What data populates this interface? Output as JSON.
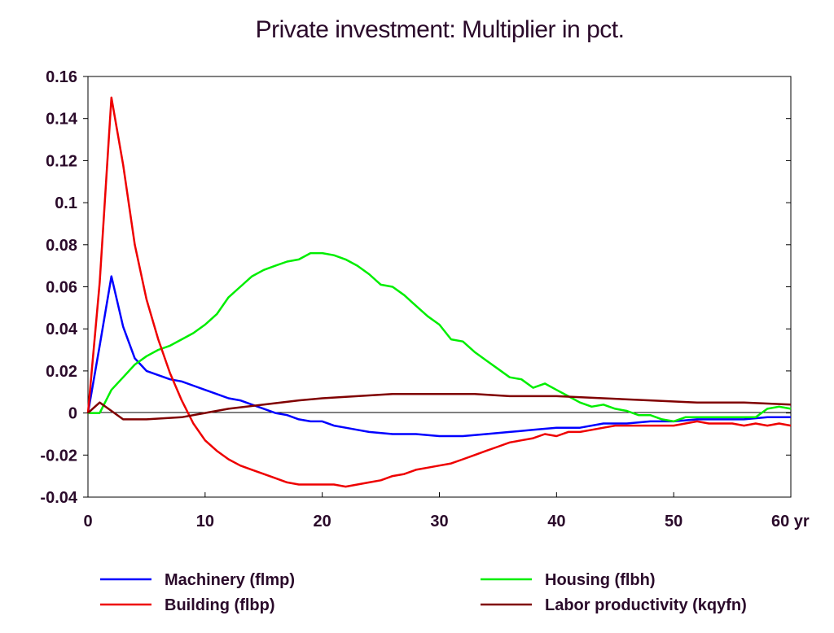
{
  "chart_data": {
    "type": "line",
    "title": "Private investment: Multiplier in pct.",
    "xlabel": "",
    "ylabel": "",
    "x_unit_label": "yr",
    "xlim": [
      0,
      60
    ],
    "ylim": [
      -0.04,
      0.16
    ],
    "x_ticks": [
      0,
      10,
      20,
      30,
      40,
      50,
      60
    ],
    "x_tick_labels": [
      "0",
      "10",
      "20",
      "30",
      "40",
      "50",
      "60 yr"
    ],
    "y_ticks": [
      -0.04,
      -0.02,
      0,
      0.02,
      0.04,
      0.06,
      0.08,
      0.1,
      0.12,
      0.14,
      0.16
    ],
    "y_tick_labels": [
      "-0.04",
      "-0.02",
      "0",
      "0.02",
      "0.04",
      "0.06",
      "0.08",
      "0.1",
      "0.12",
      "0.14",
      "0.16"
    ],
    "grid": false,
    "zero_line": true,
    "legend_position": "bottom",
    "series": [
      {
        "name": "Machinery (flmp)",
        "color": "#0000ff",
        "points": [
          [
            0,
            0
          ],
          [
            1,
            0.032
          ],
          [
            2,
            0.065
          ],
          [
            3,
            0.041
          ],
          [
            4,
            0.026
          ],
          [
            5,
            0.02
          ],
          [
            6,
            0.018
          ],
          [
            7,
            0.016
          ],
          [
            8,
            0.015
          ],
          [
            9,
            0.013
          ],
          [
            10,
            0.011
          ],
          [
            11,
            0.009
          ],
          [
            12,
            0.007
          ],
          [
            13,
            0.006
          ],
          [
            14,
            0.004
          ],
          [
            15,
            0.002
          ],
          [
            16,
            0
          ],
          [
            17,
            -0.001
          ],
          [
            18,
            -0.003
          ],
          [
            19,
            -0.004
          ],
          [
            20,
            -0.004
          ],
          [
            21,
            -0.006
          ],
          [
            22,
            -0.007
          ],
          [
            23,
            -0.008
          ],
          [
            24,
            -0.009
          ],
          [
            26,
            -0.01
          ],
          [
            28,
            -0.01
          ],
          [
            30,
            -0.011
          ],
          [
            32,
            -0.011
          ],
          [
            34,
            -0.01
          ],
          [
            36,
            -0.009
          ],
          [
            38,
            -0.008
          ],
          [
            40,
            -0.007
          ],
          [
            42,
            -0.007
          ],
          [
            44,
            -0.005
          ],
          [
            46,
            -0.005
          ],
          [
            48,
            -0.004
          ],
          [
            50,
            -0.004
          ],
          [
            52,
            -0.003
          ],
          [
            54,
            -0.003
          ],
          [
            56,
            -0.003
          ],
          [
            58,
            -0.002
          ],
          [
            60,
            -0.002
          ]
        ]
      },
      {
        "name": "Housing (flbh)",
        "color": "#00ee00",
        "points": [
          [
            0,
            0
          ],
          [
            1,
            0
          ],
          [
            2,
            0.011
          ],
          [
            3,
            0.017
          ],
          [
            4,
            0.023
          ],
          [
            5,
            0.027
          ],
          [
            6,
            0.03
          ],
          [
            7,
            0.032
          ],
          [
            8,
            0.035
          ],
          [
            9,
            0.038
          ],
          [
            10,
            0.042
          ],
          [
            11,
            0.047
          ],
          [
            12,
            0.055
          ],
          [
            13,
            0.06
          ],
          [
            14,
            0.065
          ],
          [
            15,
            0.068
          ],
          [
            16,
            0.07
          ],
          [
            17,
            0.072
          ],
          [
            18,
            0.073
          ],
          [
            19,
            0.076
          ],
          [
            20,
            0.076
          ],
          [
            21,
            0.075
          ],
          [
            22,
            0.073
          ],
          [
            23,
            0.07
          ],
          [
            24,
            0.066
          ],
          [
            25,
            0.061
          ],
          [
            26,
            0.06
          ],
          [
            27,
            0.056
          ],
          [
            28,
            0.051
          ],
          [
            29,
            0.046
          ],
          [
            30,
            0.042
          ],
          [
            31,
            0.035
          ],
          [
            32,
            0.034
          ],
          [
            33,
            0.029
          ],
          [
            34,
            0.025
          ],
          [
            35,
            0.021
          ],
          [
            36,
            0.017
          ],
          [
            37,
            0.016
          ],
          [
            38,
            0.012
          ],
          [
            39,
            0.014
          ],
          [
            40,
            0.011
          ],
          [
            41,
            0.008
          ],
          [
            42,
            0.005
          ],
          [
            43,
            0.003
          ],
          [
            44,
            0.004
          ],
          [
            45,
            0.002
          ],
          [
            46,
            0.001
          ],
          [
            47,
            -0.001
          ],
          [
            48,
            -0.001
          ],
          [
            49,
            -0.003
          ],
          [
            50,
            -0.004
          ],
          [
            51,
            -0.002
          ],
          [
            52,
            -0.002
          ],
          [
            53,
            -0.002
          ],
          [
            54,
            -0.002
          ],
          [
            55,
            -0.002
          ],
          [
            56,
            -0.002
          ],
          [
            57,
            -0.002
          ],
          [
            58,
            0.002
          ],
          [
            59,
            0.003
          ],
          [
            60,
            0.002
          ]
        ]
      },
      {
        "name": "Building (flbp)",
        "color": "#ee0000",
        "points": [
          [
            0,
            0
          ],
          [
            1,
            0.062
          ],
          [
            2,
            0.15
          ],
          [
            3,
            0.118
          ],
          [
            4,
            0.08
          ],
          [
            5,
            0.054
          ],
          [
            6,
            0.035
          ],
          [
            7,
            0.019
          ],
          [
            8,
            0.006
          ],
          [
            9,
            -0.005
          ],
          [
            10,
            -0.013
          ],
          [
            11,
            -0.018
          ],
          [
            12,
            -0.022
          ],
          [
            13,
            -0.025
          ],
          [
            14,
            -0.027
          ],
          [
            15,
            -0.029
          ],
          [
            16,
            -0.031
          ],
          [
            17,
            -0.033
          ],
          [
            18,
            -0.034
          ],
          [
            19,
            -0.034
          ],
          [
            20,
            -0.034
          ],
          [
            21,
            -0.034
          ],
          [
            22,
            -0.035
          ],
          [
            23,
            -0.034
          ],
          [
            24,
            -0.033
          ],
          [
            25,
            -0.032
          ],
          [
            26,
            -0.03
          ],
          [
            27,
            -0.029
          ],
          [
            28,
            -0.027
          ],
          [
            29,
            -0.026
          ],
          [
            30,
            -0.025
          ],
          [
            31,
            -0.024
          ],
          [
            32,
            -0.022
          ],
          [
            33,
            -0.02
          ],
          [
            34,
            -0.018
          ],
          [
            35,
            -0.016
          ],
          [
            36,
            -0.014
          ],
          [
            37,
            -0.013
          ],
          [
            38,
            -0.012
          ],
          [
            39,
            -0.01
          ],
          [
            40,
            -0.011
          ],
          [
            41,
            -0.009
          ],
          [
            42,
            -0.009
          ],
          [
            43,
            -0.008
          ],
          [
            44,
            -0.007
          ],
          [
            45,
            -0.006
          ],
          [
            46,
            -0.006
          ],
          [
            47,
            -0.006
          ],
          [
            48,
            -0.006
          ],
          [
            49,
            -0.006
          ],
          [
            50,
            -0.006
          ],
          [
            51,
            -0.005
          ],
          [
            52,
            -0.004
          ],
          [
            53,
            -0.005
          ],
          [
            54,
            -0.005
          ],
          [
            55,
            -0.005
          ],
          [
            56,
            -0.006
          ],
          [
            57,
            -0.005
          ],
          [
            58,
            -0.006
          ],
          [
            59,
            -0.005
          ],
          [
            60,
            -0.006
          ]
        ]
      },
      {
        "name": "Labor productivity (kqyfn)",
        "color": "#800000",
        "points": [
          [
            0,
            0
          ],
          [
            1,
            0.005
          ],
          [
            2,
            0.001
          ],
          [
            3,
            -0.003
          ],
          [
            5,
            -0.003
          ],
          [
            8,
            -0.002
          ],
          [
            10,
            0
          ],
          [
            12,
            0.002
          ],
          [
            15,
            0.004
          ],
          [
            18,
            0.006
          ],
          [
            20,
            0.007
          ],
          [
            23,
            0.008
          ],
          [
            26,
            0.009
          ],
          [
            28,
            0.009
          ],
          [
            30,
            0.009
          ],
          [
            33,
            0.009
          ],
          [
            36,
            0.008
          ],
          [
            40,
            0.008
          ],
          [
            44,
            0.007
          ],
          [
            48,
            0.006
          ],
          [
            52,
            0.005
          ],
          [
            56,
            0.005
          ],
          [
            60,
            0.004
          ]
        ]
      }
    ]
  }
}
